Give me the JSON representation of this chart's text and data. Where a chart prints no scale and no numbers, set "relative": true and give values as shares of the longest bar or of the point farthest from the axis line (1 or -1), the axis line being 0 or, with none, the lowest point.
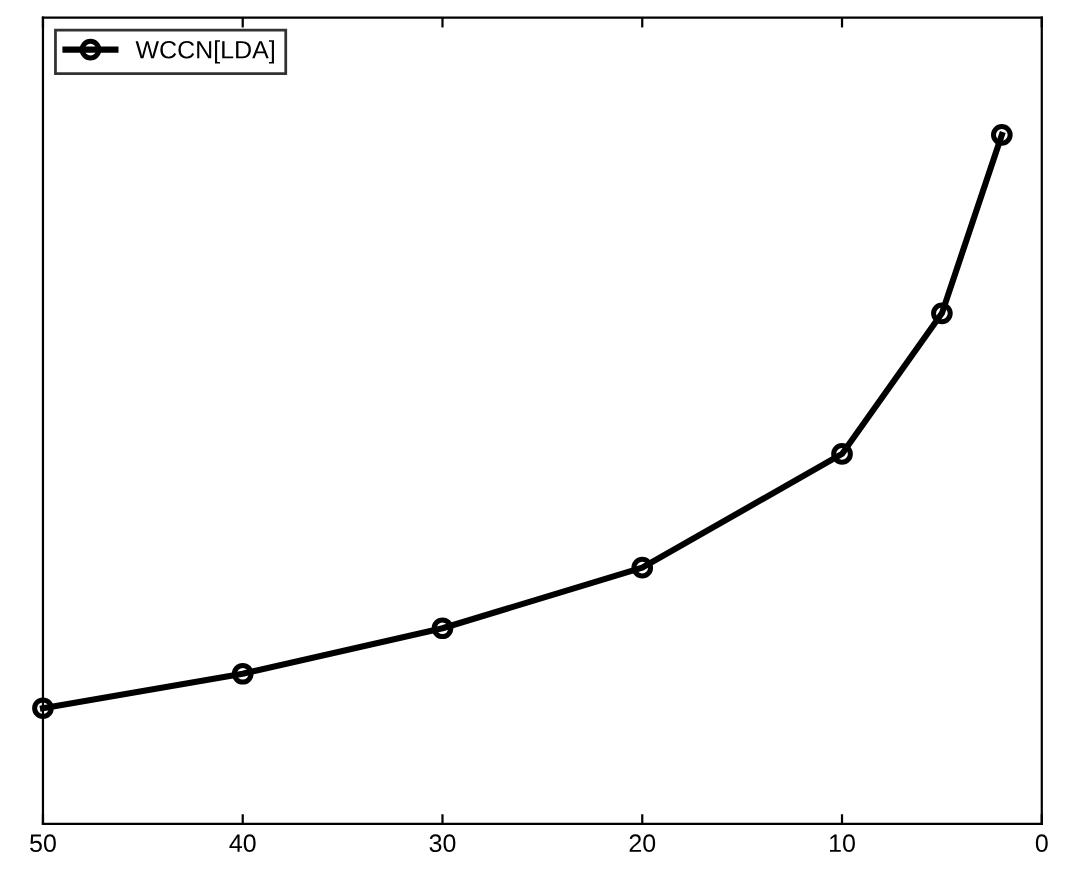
{
  "chart_data": {
    "type": "line",
    "relative": true,
    "x": [
      50,
      40,
      30,
      20,
      10,
      5,
      2
    ],
    "series": [
      {
        "name": "WCCN[LDA]",
        "color": "#000000",
        "values": [
          0.168,
          0.218,
          0.284,
          0.372,
          0.537,
          0.741,
          1.0
        ]
      }
    ],
    "xlim": [
      50,
      0
    ],
    "xticks": [
      50,
      40,
      30,
      20,
      10,
      0
    ],
    "legend": "top left",
    "marker": "circle",
    "line_style": "solid",
    "grid": false
  }
}
